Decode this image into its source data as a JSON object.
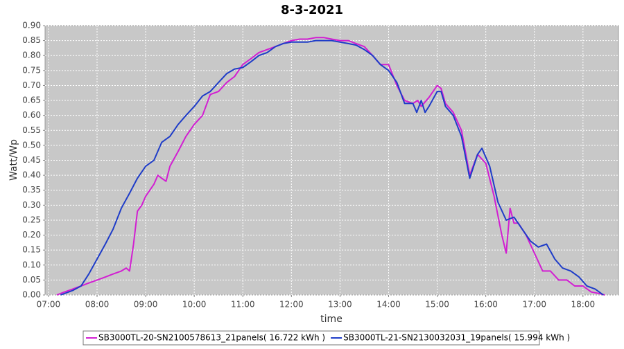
{
  "chart_data": {
    "type": "line",
    "title": "8-3-2021",
    "x_label": "time",
    "y_label": "Watt/Wp",
    "xlim": [
      6.93,
      18.73
    ],
    "xticks": [
      {
        "value": 7,
        "label": "07:00"
      },
      {
        "value": 8,
        "label": "08:00"
      },
      {
        "value": 9,
        "label": "09:00"
      },
      {
        "value": 10,
        "label": "10:00"
      },
      {
        "value": 11,
        "label": "11:00"
      },
      {
        "value": 12,
        "label": "12:00"
      },
      {
        "value": 13,
        "label": "13:00"
      },
      {
        "value": 14,
        "label": "14:00"
      },
      {
        "value": 15,
        "label": "15:00"
      },
      {
        "value": 16,
        "label": "16:00"
      },
      {
        "value": 17,
        "label": "17:00"
      },
      {
        "value": 18,
        "label": "18:00"
      }
    ],
    "ylim": [
      0,
      0.9
    ],
    "yticks": [
      {
        "value": 0,
        "label": "0.00"
      },
      {
        "value": 0.05,
        "label": "0.05"
      },
      {
        "value": 0.1,
        "label": "0.10"
      },
      {
        "value": 0.15,
        "label": "0.15"
      },
      {
        "value": 0.2,
        "label": "0.20"
      },
      {
        "value": 0.25,
        "label": "0.25"
      },
      {
        "value": 0.3,
        "label": "0.30"
      },
      {
        "value": 0.35,
        "label": "0.35"
      },
      {
        "value": 0.4,
        "label": "0.40"
      },
      {
        "value": 0.45,
        "label": "0.45"
      },
      {
        "value": 0.5,
        "label": "0.50"
      },
      {
        "value": 0.55,
        "label": "0.55"
      },
      {
        "value": 0.6,
        "label": "0.60"
      },
      {
        "value": 0.65,
        "label": "0.65"
      },
      {
        "value": 0.7,
        "label": "0.70"
      },
      {
        "value": 0.75,
        "label": "0.75"
      },
      {
        "value": 0.8,
        "label": "0.80"
      },
      {
        "value": 0.85,
        "label": "0.85"
      },
      {
        "value": 0.9,
        "label": "0.90"
      }
    ],
    "grid": true,
    "series": [
      {
        "name": "SB3000TL-20-SN2100578613_21panels( 16.722 kWh )",
        "color": "#d21ed2",
        "x": [
          7.17,
          7.33,
          7.5,
          7.67,
          7.83,
          8.0,
          8.17,
          8.33,
          8.5,
          8.6,
          8.67,
          8.75,
          8.83,
          8.92,
          9.0,
          9.17,
          9.25,
          9.33,
          9.42,
          9.5,
          9.67,
          9.83,
          10.0,
          10.17,
          10.33,
          10.5,
          10.67,
          10.83,
          11.0,
          11.17,
          11.33,
          11.5,
          11.67,
          11.83,
          12.0,
          12.17,
          12.33,
          12.5,
          12.67,
          12.83,
          13.0,
          13.17,
          13.33,
          13.5,
          13.67,
          13.83,
          14.0,
          14.17,
          14.33,
          14.5,
          14.6,
          14.67,
          14.83,
          15.0,
          15.08,
          15.17,
          15.33,
          15.5,
          15.67,
          15.83,
          16.0,
          16.17,
          16.33,
          16.42,
          16.5,
          16.58,
          16.67,
          16.83,
          17.0,
          17.17,
          17.33,
          17.5,
          17.67,
          17.83,
          18.0,
          18.17,
          18.33,
          18.45
        ],
        "values": [
          0.0,
          0.01,
          0.02,
          0.03,
          0.04,
          0.05,
          0.06,
          0.07,
          0.08,
          0.09,
          0.08,
          0.17,
          0.28,
          0.3,
          0.33,
          0.37,
          0.4,
          0.39,
          0.38,
          0.43,
          0.48,
          0.53,
          0.57,
          0.6,
          0.67,
          0.68,
          0.71,
          0.73,
          0.77,
          0.79,
          0.81,
          0.82,
          0.83,
          0.84,
          0.85,
          0.855,
          0.855,
          0.86,
          0.86,
          0.855,
          0.85,
          0.85,
          0.84,
          0.83,
          0.8,
          0.77,
          0.77,
          0.7,
          0.65,
          0.64,
          0.65,
          0.63,
          0.66,
          0.7,
          0.69,
          0.64,
          0.61,
          0.55,
          0.4,
          0.47,
          0.44,
          0.33,
          0.2,
          0.14,
          0.29,
          0.24,
          0.24,
          0.2,
          0.14,
          0.08,
          0.08,
          0.05,
          0.05,
          0.03,
          0.03,
          0.01,
          0.005,
          0.0
        ]
      },
      {
        "name": "SB3000TL-21-SN2130032031_19panels( 15.994 kWh )",
        "color": "#1e3cc8",
        "x": [
          7.25,
          7.5,
          7.67,
          7.83,
          8.0,
          8.17,
          8.33,
          8.5,
          8.67,
          8.83,
          9.0,
          9.17,
          9.33,
          9.5,
          9.67,
          9.83,
          10.0,
          10.17,
          10.33,
          10.5,
          10.67,
          10.83,
          11.0,
          11.17,
          11.33,
          11.5,
          11.67,
          11.83,
          12.0,
          12.17,
          12.33,
          12.5,
          12.67,
          12.83,
          13.0,
          13.17,
          13.33,
          13.5,
          13.67,
          13.83,
          14.0,
          14.17,
          14.33,
          14.5,
          14.58,
          14.67,
          14.75,
          14.83,
          15.0,
          15.08,
          15.17,
          15.33,
          15.5,
          15.67,
          15.83,
          15.92,
          16.08,
          16.25,
          16.42,
          16.58,
          16.75,
          16.92,
          17.08,
          17.25,
          17.42,
          17.58,
          17.75,
          17.92,
          18.08,
          18.25,
          18.42
        ],
        "values": [
          0.0,
          0.015,
          0.03,
          0.07,
          0.12,
          0.17,
          0.22,
          0.29,
          0.34,
          0.39,
          0.43,
          0.45,
          0.51,
          0.53,
          0.57,
          0.6,
          0.63,
          0.665,
          0.68,
          0.71,
          0.74,
          0.755,
          0.76,
          0.78,
          0.8,
          0.81,
          0.83,
          0.84,
          0.845,
          0.845,
          0.845,
          0.85,
          0.85,
          0.85,
          0.845,
          0.84,
          0.835,
          0.82,
          0.8,
          0.77,
          0.75,
          0.71,
          0.64,
          0.64,
          0.61,
          0.65,
          0.61,
          0.63,
          0.68,
          0.68,
          0.63,
          0.6,
          0.53,
          0.39,
          0.47,
          0.49,
          0.43,
          0.31,
          0.25,
          0.26,
          0.22,
          0.18,
          0.16,
          0.17,
          0.12,
          0.09,
          0.08,
          0.06,
          0.03,
          0.02,
          0.0
        ]
      }
    ]
  }
}
